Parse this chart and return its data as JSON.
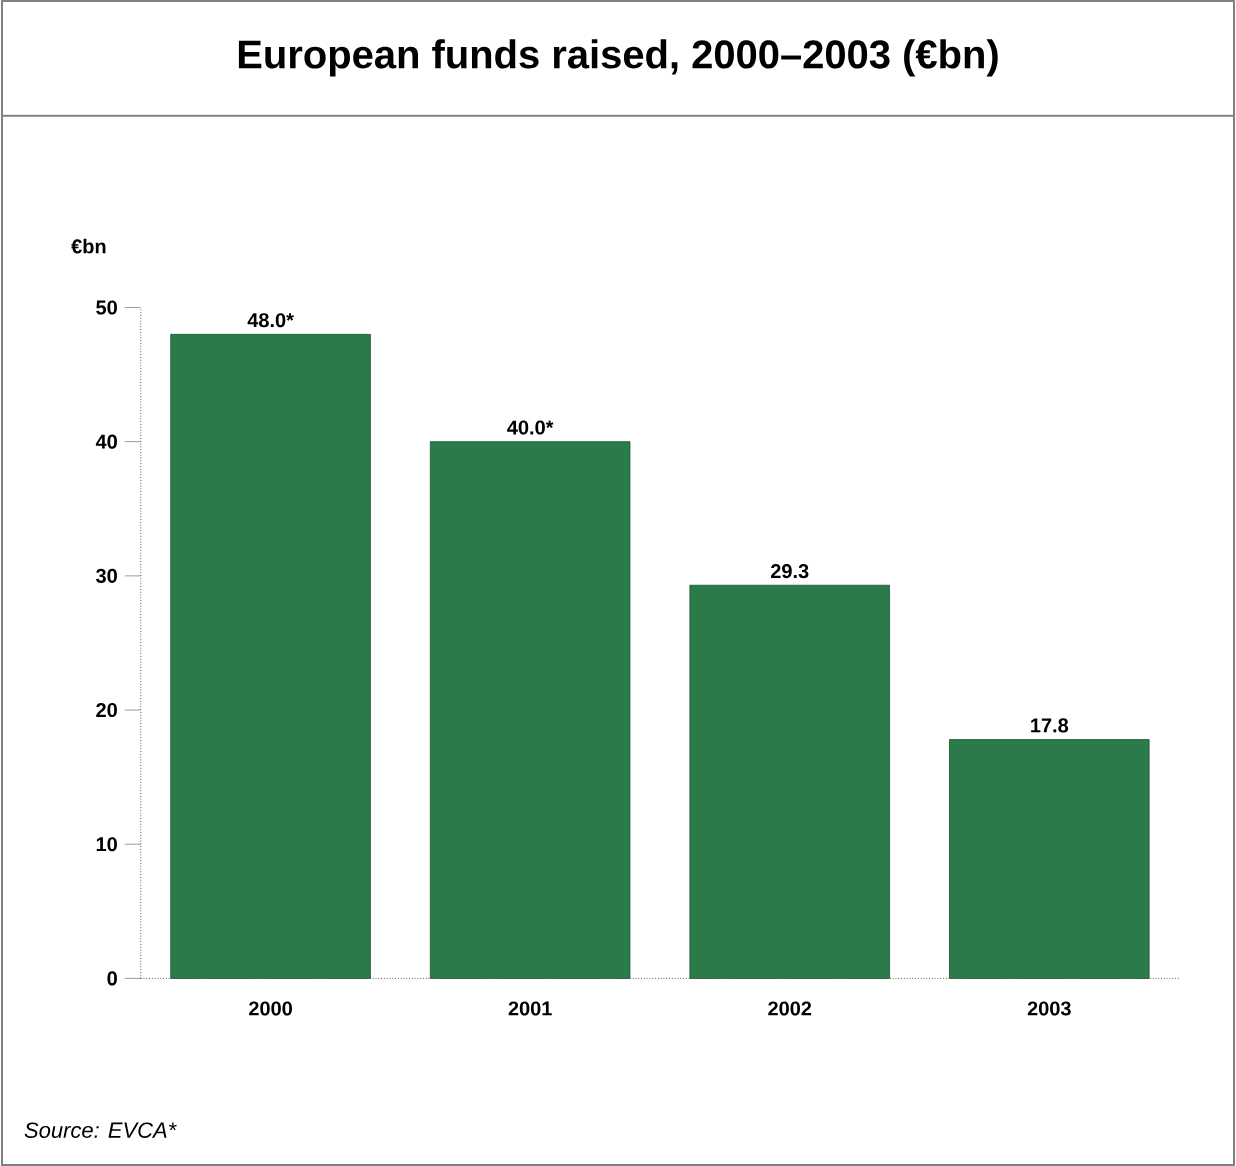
{
  "chart_data": {
    "type": "bar",
    "title": "European funds raised, 2000–2003 (€bn)",
    "ylabel": "€bn",
    "categories": [
      "2000",
      "2001",
      "2002",
      "2003"
    ],
    "values": [
      48.0,
      40.0,
      29.3,
      17.8
    ],
    "value_labels": [
      "48.0*",
      "40.0*",
      "29.3",
      "17.8"
    ],
    "color": "#2a7a4a",
    "ylim": [
      0,
      50
    ],
    "yticks": [
      0,
      10,
      20,
      30,
      40,
      50
    ],
    "grid": false,
    "annotations": [
      "Source: EVCA*"
    ]
  }
}
